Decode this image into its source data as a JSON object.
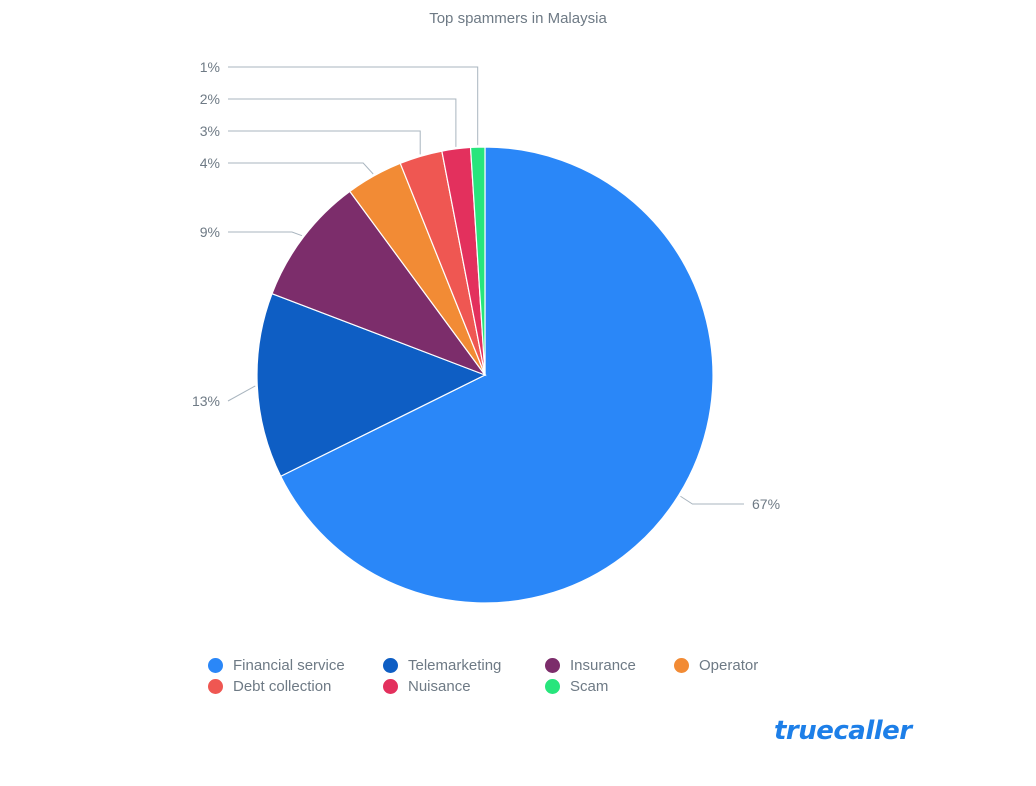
{
  "chart_data": {
    "type": "pie",
    "title": "Top spammers in Malaysia",
    "slices": [
      {
        "label": "Financial service",
        "value": 67,
        "display": "67%",
        "color": "#2a87f8"
      },
      {
        "label": "Telemarketing",
        "value": 13,
        "display": "13%",
        "color": "#0e5ec4"
      },
      {
        "label": "Insurance",
        "value": 9,
        "display": "9%",
        "color": "#7c2d6b"
      },
      {
        "label": "Operator",
        "value": 4,
        "display": "4%",
        "color": "#f28b35"
      },
      {
        "label": "Debt collection",
        "value": 3,
        "display": "3%",
        "color": "#ef5752"
      },
      {
        "label": "Nuisance",
        "value": 2,
        "display": "2%",
        "color": "#e3305d"
      },
      {
        "label": "Scam",
        "value": 1,
        "display": "1%",
        "color": "#27e57c"
      }
    ],
    "legend_position": "bottom"
  },
  "brand": {
    "name": "truecaller",
    "color": "#1d7fe8"
  }
}
